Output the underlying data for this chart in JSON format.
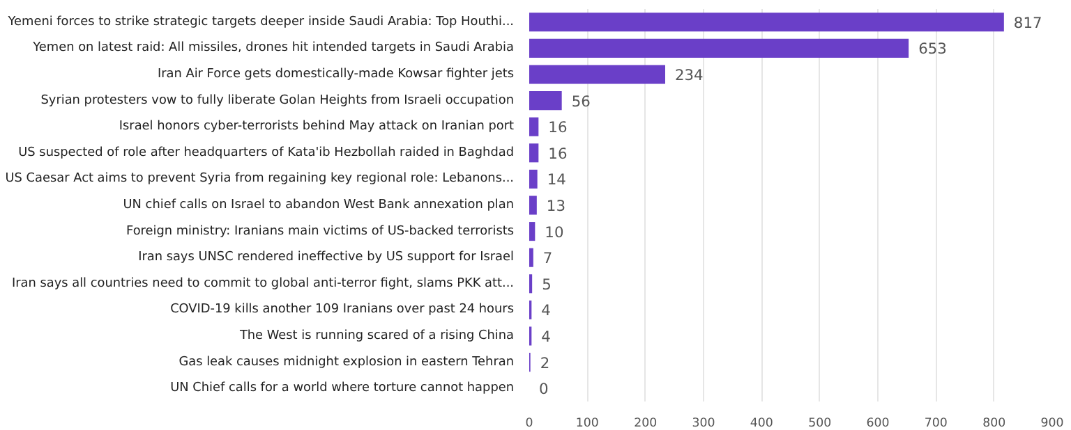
{
  "chart_data": {
    "type": "bar",
    "orientation": "horizontal",
    "categories": [
      "Yemeni forces to strike strategic targets deeper inside Saudi Arabia: Top Houthi...",
      "Yemen on latest raid: All missiles, drones hit intended targets in Saudi Arabia",
      "Iran Air Force gets domestically-made Kowsar fighter jets",
      "Syrian protesters vow to fully liberate Golan Heights from Israeli occupation",
      "Israel honors cyber-terrorists behind May attack on Iranian port",
      "US suspected of role after headquarters of Kata'ib Hezbollah raided in Baghdad",
      "US Caesar Act aims to prevent Syria from regaining key regional role: Lebanons...",
      "UN chief calls on Israel to abandon West Bank annexation plan",
      "Foreign ministry: Iranians main victims of US-backed terrorists",
      "Iran says UNSC rendered ineffective by US support for Israel",
      "Iran says all countries need to commit to global anti-terror fight, slams PKK att...",
      "COVID-19 kills another 109 Iranians over past 24 hours",
      "The West is running scared of a rising China",
      "Gas leak causes midnight explosion in eastern Tehran",
      "UN Chief calls for a world where torture cannot happen"
    ],
    "values": [
      817,
      653,
      234,
      56,
      16,
      16,
      14,
      13,
      10,
      7,
      5,
      4,
      4,
      2,
      0
    ],
    "color": "#6a3fc8",
    "data_labels": true,
    "xlim": [
      0,
      900
    ],
    "xticks": [
      0,
      100,
      200,
      300,
      400,
      500,
      600,
      700,
      800,
      900
    ],
    "grid": "x"
  }
}
